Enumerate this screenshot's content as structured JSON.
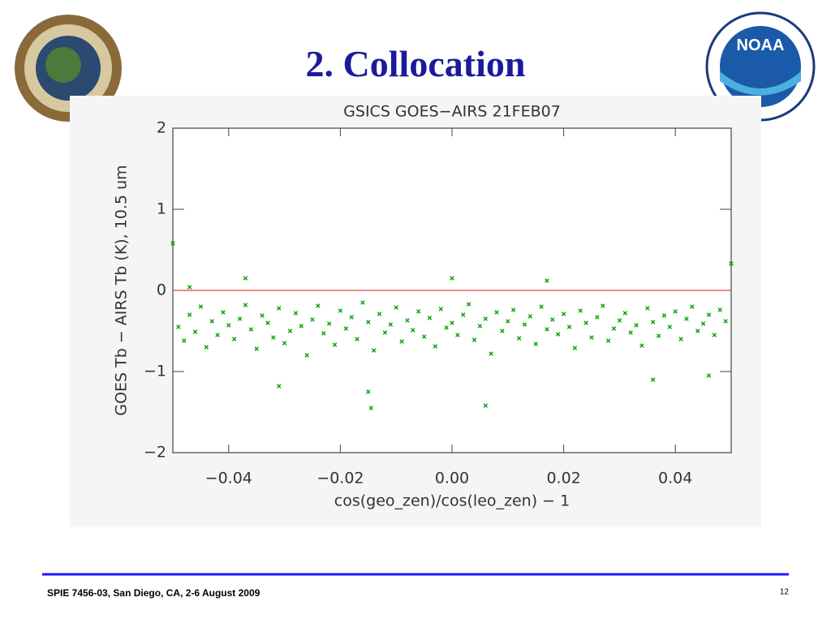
{
  "slide": {
    "title": "2. Collocation",
    "footer": "SPIE 7456-03, San Diego, CA, 2-6 August 2009",
    "page_number": "12",
    "logo_label": "NOAA"
  },
  "chart_data": {
    "type": "scatter",
    "title": "GSICS GOES−AIRS 21FEB07",
    "xlabel": "cos(geo_zen)/cos(leo_zen) − 1",
    "ylabel": "GOES Tb − AIRS Tb (K), 10.5 um",
    "xlim": [
      -0.05,
      0.05
    ],
    "ylim": [
      -2,
      2
    ],
    "xticks": [
      {
        "value": -0.04,
        "label": "−0.04"
      },
      {
        "value": -0.02,
        "label": "−0.02"
      },
      {
        "value": 0,
        "label": "0.00"
      },
      {
        "value": 0.02,
        "label": "0.02"
      },
      {
        "value": 0.04,
        "label": "0.04"
      }
    ],
    "yticks": [
      {
        "value": -2,
        "label": "−2"
      },
      {
        "value": -1,
        "label": "−1"
      },
      0,
      1,
      2
    ],
    "reference_line": {
      "value": 0,
      "color": "#e04040"
    },
    "color": "#00a000",
    "x": [
      -0.049,
      -0.048,
      -0.047,
      -0.046,
      -0.045,
      -0.044,
      -0.043,
      -0.042,
      -0.041,
      -0.04,
      -0.039,
      -0.038,
      -0.037,
      -0.036,
      -0.035,
      -0.034,
      -0.033,
      -0.032,
      -0.031,
      -0.03,
      -0.029,
      -0.028,
      -0.027,
      -0.026,
      -0.025,
      -0.024,
      -0.023,
      -0.022,
      -0.021,
      -0.02,
      -0.019,
      -0.018,
      -0.017,
      -0.016,
      -0.015,
      -0.014,
      -0.013,
      -0.012,
      -0.011,
      -0.01,
      -0.009,
      -0.008,
      -0.007,
      -0.006,
      -0.005,
      -0.004,
      -0.003,
      -0.002,
      -0.001,
      0,
      0.001,
      0.002,
      0.003,
      0.004,
      0.005,
      0.006,
      0.007,
      0.008,
      0.009,
      0.01,
      0.011,
      0.012,
      0.013,
      0.014,
      0.015,
      0.016,
      0.017,
      0.018,
      0.019,
      0.02,
      0.021,
      0.022,
      0.023,
      0.024,
      0.025,
      0.026,
      0.027,
      0.028,
      0.029,
      0.03,
      0.031,
      0.032,
      0.033,
      0.034,
      0.035,
      0.036,
      0.037,
      0.038,
      0.039,
      0.04,
      0.041,
      0.042,
      0.043,
      0.044,
      0.045,
      0.046,
      0.047,
      0.048,
      0.049,
      -0.0145,
      0.006,
      -0.031,
      -0.015,
      0.036,
      0.046,
      -0.05,
      0.05,
      -0.037,
      0,
      -0.047,
      0.017
    ],
    "values": [
      -0.45,
      -0.62,
      -0.3,
      -0.51,
      -0.2,
      -0.7,
      -0.38,
      -0.55,
      -0.27,
      -0.43,
      -0.6,
      -0.35,
      -0.18,
      -0.48,
      -0.72,
      -0.31,
      -0.4,
      -0.58,
      -0.22,
      -0.65,
      -0.5,
      -0.28,
      -0.44,
      -0.8,
      -0.36,
      -0.19,
      -0.53,
      -0.41,
      -0.67,
      -0.25,
      -0.47,
      -0.33,
      -0.6,
      -0.15,
      -0.39,
      -0.74,
      -0.29,
      -0.52,
      -0.42,
      -0.21,
      -0.63,
      -0.37,
      -0.49,
      -0.26,
      -0.57,
      -0.34,
      -0.69,
      -0.23,
      -0.46,
      -0.4,
      -0.55,
      -0.3,
      -0.17,
      -0.61,
      -0.44,
      -0.35,
      -0.78,
      -0.27,
      -0.5,
      -0.38,
      -0.24,
      -0.59,
      -0.42,
      -0.32,
      -0.66,
      -0.2,
      -0.48,
      -0.36,
      -0.54,
      -0.29,
      -0.45,
      -0.71,
      -0.25,
      -0.4,
      -0.58,
      -0.33,
      -0.19,
      -0.62,
      -0.47,
      -0.37,
      -0.28,
      -0.52,
      -0.43,
      -0.68,
      -0.22,
      -0.39,
      -0.56,
      -0.31,
      -0.45,
      -0.26,
      -0.6,
      -0.35,
      -0.2,
      -0.5,
      -0.41,
      -0.3,
      -0.55,
      -0.24,
      -0.38,
      -1.45,
      -1.42,
      -1.18,
      -1.25,
      -1.1,
      -1.05,
      0.58,
      0.33,
      0.15,
      0.15,
      0.04,
      0.12
    ]
  }
}
